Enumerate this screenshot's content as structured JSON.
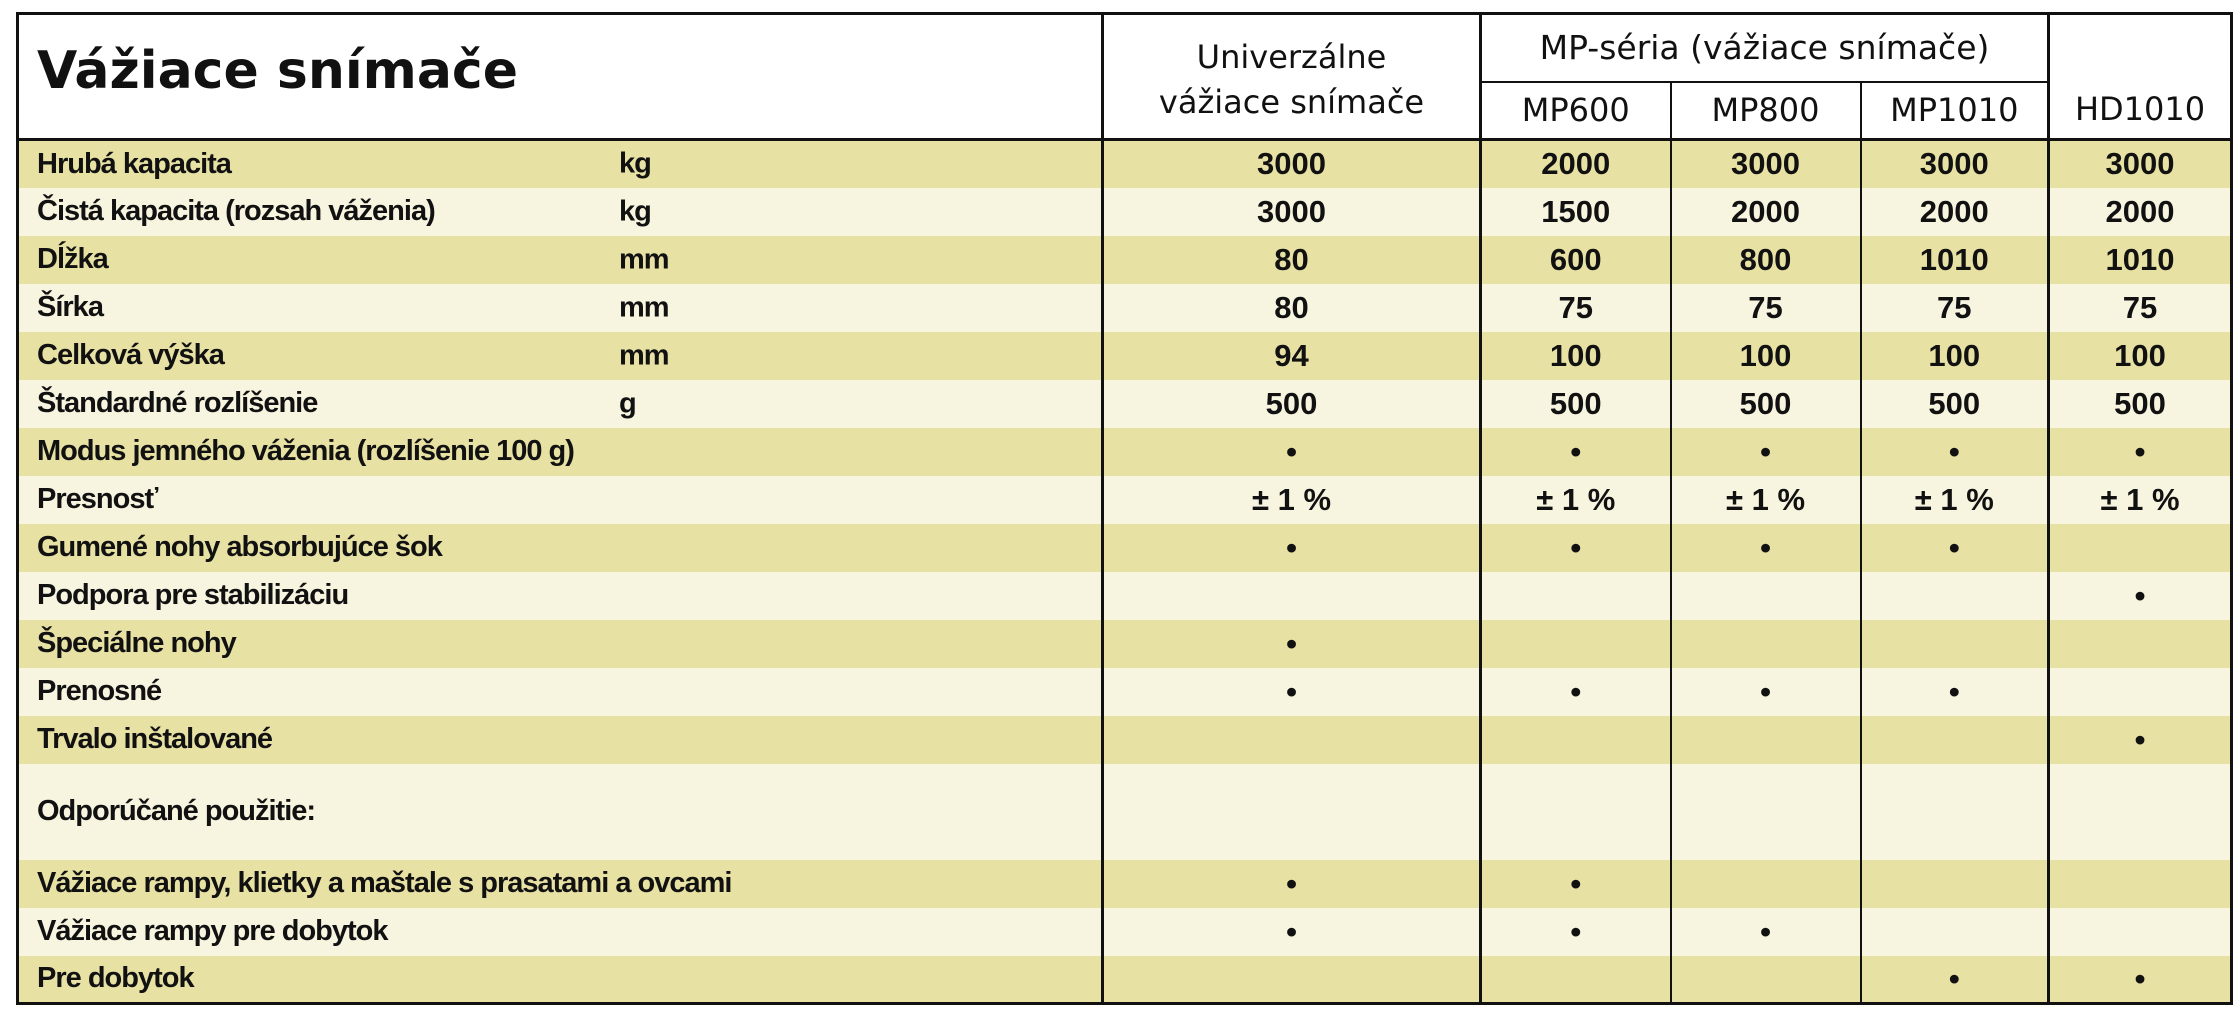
{
  "header": {
    "title": "Vážiace snímače",
    "universal_line1": "Univerzálne",
    "universal_line2": "vážiace snímače",
    "group": "MP-séria (vážiace snímače)",
    "columns": [
      "MP600",
      "MP800",
      "MP1010"
    ],
    "hd": "HD1010"
  },
  "rows": [
    {
      "label": "Hrubá kapacita",
      "unit": "kg",
      "values": [
        "3000",
        "2000",
        "3000",
        "3000",
        "3000"
      ]
    },
    {
      "label": "Čistá kapacita (rozsah váženia)",
      "unit": "kg",
      "values": [
        "3000",
        "1500",
        "2000",
        "2000",
        "2000"
      ]
    },
    {
      "label": "Dĺžka",
      "unit": "mm",
      "values": [
        "80",
        "600",
        "800",
        "1010",
        "1010"
      ]
    },
    {
      "label": "Šírka",
      "unit": "mm",
      "values": [
        "80",
        "75",
        "75",
        "75",
        "75"
      ]
    },
    {
      "label": "Celková výška",
      "unit": "mm",
      "values": [
        "94",
        "100",
        "100",
        "100",
        "100"
      ]
    },
    {
      "label": "Štandardné rozlíšenie",
      "unit": "g",
      "values": [
        "500",
        "500",
        "500",
        "500",
        "500"
      ]
    },
    {
      "label": "Modus jemného váženia (rozlíšenie 100 g)",
      "unit": "",
      "values": [
        "•",
        "•",
        "•",
        "•",
        "•"
      ]
    },
    {
      "label": "Presnosť",
      "unit": "",
      "values": [
        "± 1 %",
        "± 1 %",
        "± 1 %",
        "± 1 %",
        "± 1 %"
      ]
    },
    {
      "label": "Gumené nohy absorbujúce šok",
      "unit": "",
      "values": [
        "•",
        "•",
        "•",
        "•",
        ""
      ]
    },
    {
      "label": "Podpora pre stabilizáciu",
      "unit": "",
      "values": [
        "",
        "",
        "",
        "",
        "•"
      ]
    },
    {
      "label": "Špeciálne nohy",
      "unit": "",
      "values": [
        "•",
        "",
        "",
        "",
        ""
      ]
    },
    {
      "label": "Prenosné",
      "unit": "",
      "values": [
        "•",
        "•",
        "•",
        "•",
        ""
      ]
    },
    {
      "label": "Trvalo inštalované",
      "unit": "",
      "values": [
        "",
        "",
        "",
        "",
        "•"
      ]
    },
    {
      "label": "Odporúčané použitie:",
      "unit": "",
      "values": [
        "",
        "",
        "",
        "",
        ""
      ]
    },
    {
      "label": "Vážiace rampy, klietky a maštale s prasatami a ovcami",
      "unit": "",
      "values": [
        "•",
        "•",
        "",
        "",
        ""
      ]
    },
    {
      "label": "Vážiace rampy pre dobytok",
      "unit": "",
      "values": [
        "•",
        "•",
        "•",
        "",
        ""
      ]
    },
    {
      "label": "Pre dobytok",
      "unit": "",
      "values": [
        "",
        "",
        "",
        "•",
        "•"
      ]
    }
  ]
}
